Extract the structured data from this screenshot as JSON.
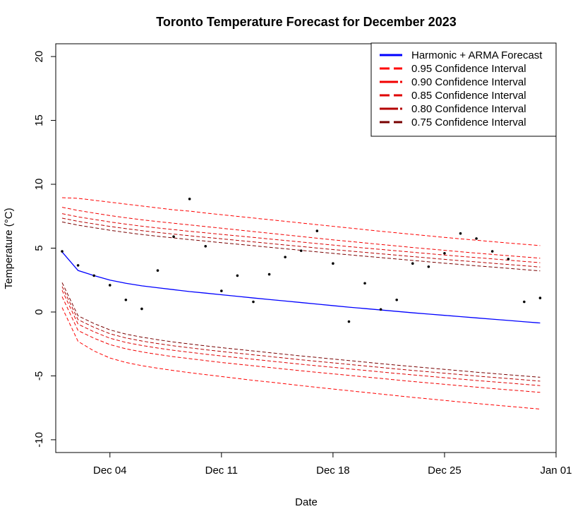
{
  "chart_data": {
    "type": "line",
    "title": "Toronto Temperature Forecast for December 2023",
    "xlabel": "Date",
    "ylabel": "Temperature (°C)",
    "x_ticks": [
      "Dec 04",
      "Dec 11",
      "Dec 18",
      "Dec 25",
      "Jan 01"
    ],
    "x_tick_days": [
      4,
      11,
      18,
      25,
      32
    ],
    "xlim": [
      0.6,
      32.0
    ],
    "y_ticks": [
      "-10",
      "-5",
      "0",
      "5",
      "10",
      "15",
      "20"
    ],
    "y_tick_values": [
      -10,
      -5,
      0,
      5,
      10,
      15,
      20
    ],
    "ylim": [
      -11,
      21
    ],
    "x": [
      1,
      2,
      3,
      4,
      5,
      6,
      7,
      8,
      9,
      10,
      11,
      12,
      13,
      14,
      15,
      16,
      17,
      18,
      19,
      20,
      21,
      22,
      23,
      24,
      25,
      26,
      27,
      28,
      29,
      30,
      31
    ],
    "x_unit": "day of December 2023",
    "observed": {
      "style": "points",
      "color": "#000000",
      "values": [
        4.75,
        3.65,
        2.85,
        2.1,
        0.95,
        0.25,
        3.25,
        5.9,
        8.85,
        5.15,
        1.65,
        2.85,
        0.8,
        2.95,
        4.3,
        4.8,
        6.35,
        3.8,
        -0.75,
        2.25,
        0.2,
        0.95,
        3.8,
        3.55,
        4.6,
        6.15,
        5.75,
        4.75,
        4.15,
        0.8,
        1.1
      ]
    },
    "series": [
      {
        "name": "Harmonic + ARMA Forecast",
        "color": "#0000ff",
        "dash": "solid",
        "values": [
          4.7,
          3.25,
          2.85,
          2.5,
          2.25,
          2.05,
          1.9,
          1.75,
          1.6,
          1.48,
          1.35,
          1.23,
          1.1,
          0.98,
          0.86,
          0.74,
          0.62,
          0.5,
          0.38,
          0.27,
          0.16,
          0.05,
          -0.06,
          -0.16,
          -0.26,
          -0.36,
          -0.46,
          -0.56,
          -0.66,
          -0.76,
          -0.86
        ]
      }
    ],
    "intervals": [
      {
        "name": "0.95 Confidence Interval",
        "color": "#ff0000",
        "upper": [
          8.95,
          8.9,
          8.75,
          8.6,
          8.45,
          8.3,
          8.15,
          8.0,
          7.9,
          7.75,
          7.62,
          7.49,
          7.36,
          7.23,
          7.1,
          6.97,
          6.84,
          6.71,
          6.58,
          6.45,
          6.32,
          6.2,
          6.08,
          5.96,
          5.84,
          5.73,
          5.62,
          5.51,
          5.4,
          5.3,
          5.2
        ],
        "lower": [
          0.35,
          -2.3,
          -3.05,
          -3.6,
          -3.95,
          -4.2,
          -4.4,
          -4.58,
          -4.75,
          -4.9,
          -5.05,
          -5.2,
          -5.35,
          -5.48,
          -5.62,
          -5.76,
          -5.9,
          -6.03,
          -6.16,
          -6.29,
          -6.42,
          -6.55,
          -6.68,
          -6.8,
          -6.92,
          -7.04,
          -7.16,
          -7.27,
          -7.38,
          -7.49,
          -7.6
        ]
      },
      {
        "name": "0.90 Confidence Interval",
        "color": "#f20000",
        "upper": [
          8.2,
          7.95,
          7.75,
          7.55,
          7.38,
          7.22,
          7.08,
          6.95,
          6.82,
          6.69,
          6.56,
          6.43,
          6.3,
          6.17,
          6.04,
          5.91,
          5.78,
          5.65,
          5.53,
          5.41,
          5.29,
          5.17,
          5.05,
          4.94,
          4.83,
          4.72,
          4.61,
          4.51,
          4.41,
          4.31,
          4.21
        ],
        "lower": [
          1.2,
          -1.45,
          -2.05,
          -2.55,
          -2.88,
          -3.12,
          -3.32,
          -3.5,
          -3.65,
          -3.8,
          -3.95,
          -4.08,
          -4.21,
          -4.34,
          -4.47,
          -4.6,
          -4.72,
          -4.84,
          -4.96,
          -5.08,
          -5.2,
          -5.32,
          -5.44,
          -5.55,
          -5.66,
          -5.77,
          -5.88,
          -5.99,
          -6.09,
          -6.19,
          -6.29
        ]
      },
      {
        "name": "0.85 Confidence Interval",
        "color": "#e00000",
        "upper": [
          7.7,
          7.45,
          7.25,
          7.05,
          6.88,
          6.72,
          6.58,
          6.45,
          6.32,
          6.2,
          6.08,
          5.96,
          5.84,
          5.72,
          5.6,
          5.48,
          5.36,
          5.24,
          5.12,
          5.01,
          4.9,
          4.79,
          4.68,
          4.57,
          4.46,
          4.36,
          4.26,
          4.16,
          4.06,
          3.96,
          3.86
        ],
        "lower": [
          1.7,
          -0.95,
          -1.55,
          -2.05,
          -2.38,
          -2.62,
          -2.82,
          -3.0,
          -3.15,
          -3.3,
          -3.44,
          -3.57,
          -3.7,
          -3.83,
          -3.96,
          -4.09,
          -4.21,
          -4.33,
          -4.45,
          -4.57,
          -4.69,
          -4.81,
          -4.92,
          -5.03,
          -5.14,
          -5.25,
          -5.36,
          -5.46,
          -5.56,
          -5.66,
          -5.76
        ]
      },
      {
        "name": "0.80 Confidence Interval",
        "color": "#b40000",
        "upper": [
          7.35,
          7.1,
          6.9,
          6.7,
          6.53,
          6.37,
          6.23,
          6.1,
          5.97,
          5.85,
          5.73,
          5.61,
          5.49,
          5.37,
          5.25,
          5.13,
          5.01,
          4.89,
          4.78,
          4.67,
          4.56,
          4.45,
          4.34,
          4.23,
          4.12,
          4.02,
          3.92,
          3.82,
          3.72,
          3.62,
          3.52
        ],
        "lower": [
          2.0,
          -0.6,
          -1.2,
          -1.7,
          -2.03,
          -2.27,
          -2.47,
          -2.65,
          -2.8,
          -2.95,
          -3.09,
          -3.22,
          -3.35,
          -3.48,
          -3.61,
          -3.74,
          -3.86,
          -3.98,
          -4.1,
          -4.22,
          -4.34,
          -4.46,
          -4.57,
          -4.68,
          -4.79,
          -4.9,
          -5.01,
          -5.11,
          -5.21,
          -5.31,
          -5.41
        ]
      },
      {
        "name": "0.75 Confidence Interval",
        "color": "#780000",
        "upper": [
          7.05,
          6.8,
          6.6,
          6.4,
          6.23,
          6.07,
          5.93,
          5.8,
          5.67,
          5.55,
          5.43,
          5.31,
          5.19,
          5.07,
          4.95,
          4.83,
          4.71,
          4.59,
          4.48,
          4.37,
          4.26,
          4.15,
          4.04,
          3.93,
          3.82,
          3.72,
          3.62,
          3.52,
          3.42,
          3.32,
          3.22
        ],
        "lower": [
          2.3,
          -0.3,
          -0.9,
          -1.4,
          -1.73,
          -1.97,
          -2.17,
          -2.35,
          -2.5,
          -2.65,
          -2.79,
          -2.92,
          -3.05,
          -3.18,
          -3.31,
          -3.44,
          -3.56,
          -3.68,
          -3.8,
          -3.92,
          -4.04,
          -4.16,
          -4.27,
          -4.38,
          -4.49,
          -4.6,
          -4.71,
          -4.81,
          -4.91,
          -5.01,
          -5.11
        ]
      }
    ],
    "legend": {
      "position": "top-right",
      "entries": [
        {
          "label": "Harmonic + ARMA Forecast",
          "color": "#0000ff"
        },
        {
          "label": "0.95 Confidence Interval",
          "color": "#ff0000"
        },
        {
          "label": "0.90 Confidence Interval",
          "color": "#f20000"
        },
        {
          "label": "0.85 Confidence Interval",
          "color": "#e00000"
        },
        {
          "label": "0.80 Confidence Interval",
          "color": "#b40000"
        },
        {
          "label": "0.75 Confidence Interval",
          "color": "#780000"
        }
      ]
    },
    "grid": false
  }
}
